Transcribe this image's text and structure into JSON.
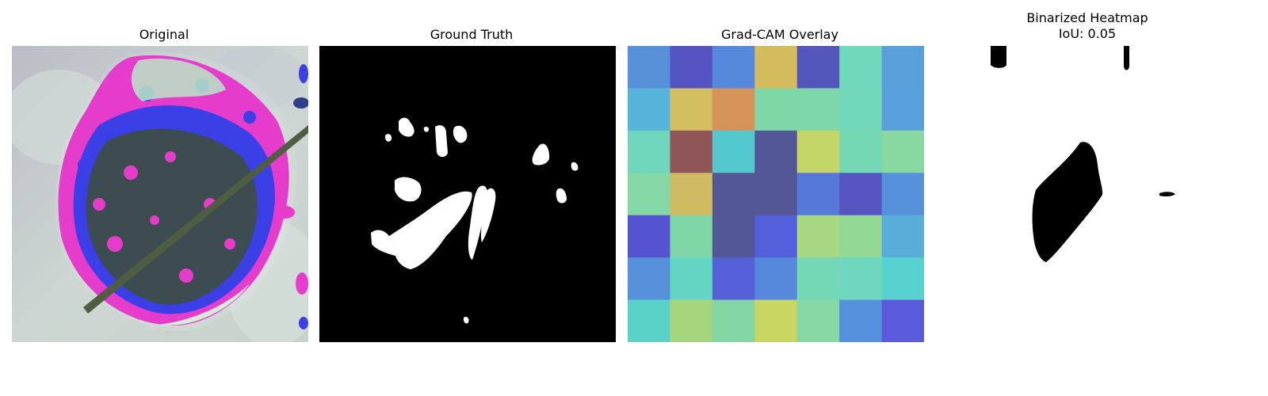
{
  "panels": {
    "original": {
      "title": "Original"
    },
    "ground_truth": {
      "title": "Ground Truth"
    },
    "gradcam": {
      "title": "Grad-CAM Overlay",
      "grid_colors": [
        [
          "#5590d9",
          "#5654c2",
          "#5689dc",
          "#d4bb5d",
          "#5556bc",
          "#70d8bb",
          "#59a0db"
        ],
        [
          "#56b4db",
          "#d3be5f",
          "#d49459",
          "#7fd6a7",
          "#7dd7ab",
          "#71d8ba",
          "#58a0db"
        ],
        [
          "#6fd6bb",
          "#8f5557",
          "#53c9cf",
          "#545796",
          "#c3d566",
          "#75d8b5",
          "#88d8a2"
        ],
        [
          "#85d7a5",
          "#cfbb61",
          "#545796",
          "#545796",
          "#5678d9",
          "#5655c2",
          "#5590da"
        ],
        [
          "#5653d0",
          "#7fd6a7",
          "#545796",
          "#5560dd",
          "#a6d782",
          "#93d895",
          "#58aed9"
        ],
        [
          "#5590d9",
          "#64d5c2",
          "#5660d9",
          "#5689dc",
          "#74d7b5",
          "#6fd7bd",
          "#58d2cf"
        ],
        [
          "#5ad2c8",
          "#a7d57e",
          "#83d6a6",
          "#c8d662",
          "#86d7a3",
          "#5590db",
          "#5a5bda"
        ]
      ]
    },
    "binarized": {
      "title": "Binarized Heatmap\nIoU: 0.05"
    }
  }
}
